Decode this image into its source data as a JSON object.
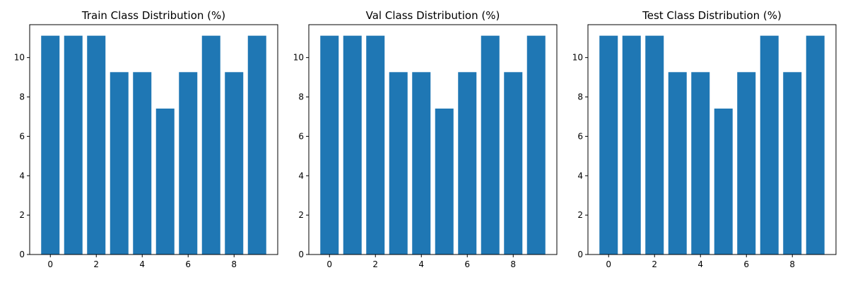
{
  "chart_data": [
    {
      "type": "bar",
      "title": "Train Class Distribution (%)",
      "xlabel": "",
      "ylabel": "",
      "categories": [
        0,
        1,
        2,
        3,
        4,
        5,
        6,
        7,
        8,
        9
      ],
      "values": [
        11.11,
        11.11,
        11.11,
        9.26,
        9.26,
        7.41,
        9.26,
        11.11,
        9.26,
        11.11
      ],
      "xlim": [
        -0.9,
        9.9
      ],
      "ylim": [
        0,
        11.67
      ],
      "xticks": [
        0,
        2,
        4,
        6,
        8
      ],
      "yticks": [
        0,
        2,
        4,
        6,
        8,
        10
      ],
      "color": "#1f77b4",
      "grid": false,
      "legend": false
    },
    {
      "type": "bar",
      "title": "Val Class Distribution (%)",
      "xlabel": "",
      "ylabel": "",
      "categories": [
        0,
        1,
        2,
        3,
        4,
        5,
        6,
        7,
        8,
        9
      ],
      "values": [
        11.11,
        11.11,
        11.11,
        9.26,
        9.26,
        7.41,
        9.26,
        11.11,
        9.26,
        11.11
      ],
      "xlim": [
        -0.9,
        9.9
      ],
      "ylim": [
        0,
        11.67
      ],
      "xticks": [
        0,
        2,
        4,
        6,
        8
      ],
      "yticks": [
        0,
        2,
        4,
        6,
        8,
        10
      ],
      "color": "#1f77b4",
      "grid": false,
      "legend": false
    },
    {
      "type": "bar",
      "title": "Test Class Distribution (%)",
      "xlabel": "",
      "ylabel": "",
      "categories": [
        0,
        1,
        2,
        3,
        4,
        5,
        6,
        7,
        8,
        9
      ],
      "values": [
        11.11,
        11.11,
        11.11,
        9.26,
        9.26,
        7.41,
        9.26,
        11.11,
        9.26,
        11.11
      ],
      "xlim": [
        -0.9,
        9.9
      ],
      "ylim": [
        0,
        11.67
      ],
      "xticks": [
        0,
        2,
        4,
        6,
        8
      ],
      "yticks": [
        0,
        2,
        4,
        6,
        8,
        10
      ],
      "color": "#1f77b4",
      "grid": false,
      "legend": false
    }
  ]
}
